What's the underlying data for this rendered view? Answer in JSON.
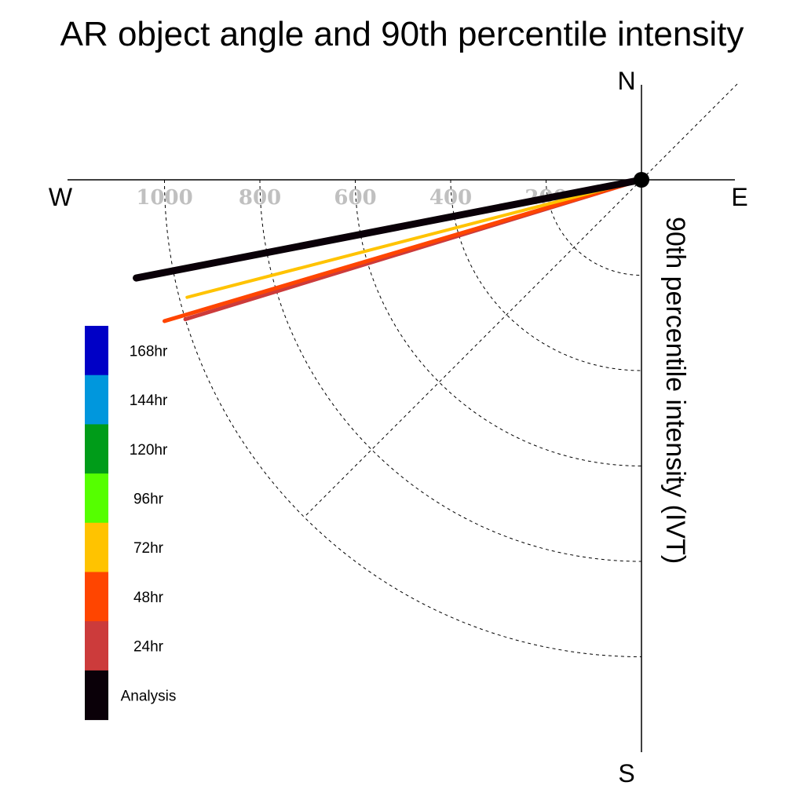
{
  "chart_data": {
    "type": "polar-vector",
    "title": "AR object angle and 90th percentile intensity",
    "ylabel": "90th percentile intensity (IVT)",
    "compass": {
      "north": "N",
      "south": "S",
      "east": "E",
      "west": "W"
    },
    "radial_ticks": [
      200,
      400,
      600,
      800,
      1000
    ],
    "rings": [
      200,
      400,
      600,
      800,
      1000
    ],
    "series": [
      {
        "name": "24hr",
        "color": "#cc3b3b",
        "angle_deg": 197.0,
        "magnitude": 1000
      },
      {
        "name": "48hr",
        "color": "#ff4500",
        "angle_deg": 196.5,
        "magnitude": 1043
      },
      {
        "name": "72hr",
        "color": "#ffc300",
        "angle_deg": 194.5,
        "magnitude": 984
      },
      {
        "name": "Analysis",
        "color": "#0a0008",
        "angle_deg": 191.0,
        "magnitude": 1079
      }
    ],
    "legend": [
      {
        "label": "168hr",
        "color": "#0000c6"
      },
      {
        "label": "144hr",
        "color": "#0097dd"
      },
      {
        "label": "120hr",
        "color": "#009c19"
      },
      {
        "label": "96hr",
        "color": "#55ff00"
      },
      {
        "label": "72hr",
        "color": "#ffc300"
      },
      {
        "label": "48hr",
        "color": "#ff4500"
      },
      {
        "label": "24hr",
        "color": "#cc3b3b"
      },
      {
        "label": "Analysis",
        "color": "#0a0008"
      }
    ]
  }
}
